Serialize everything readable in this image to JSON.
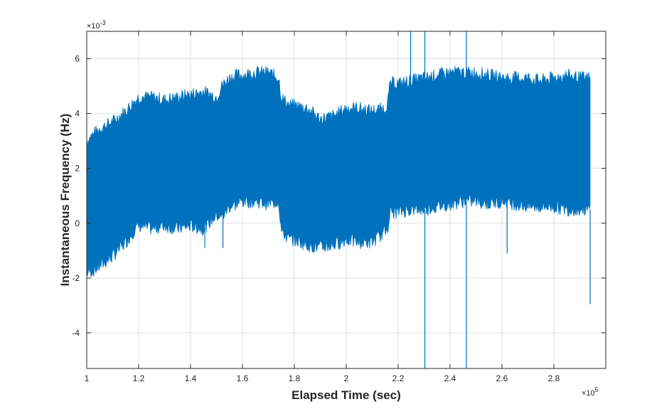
{
  "chart_data": {
    "type": "line",
    "xlabel": "Elapsed Time (sec)",
    "ylabel": "Instantaneous Frequency (Hz)",
    "x_multiplier": "×10",
    "x_multiplier_exp": "5",
    "y_multiplier": "×10",
    "y_multiplier_exp": "-3",
    "xlim": [
      1.0,
      3.0
    ],
    "ylim": [
      -5.3,
      7.0
    ],
    "x_ticks": [
      1,
      1.2,
      1.4,
      1.6,
      1.8,
      2,
      2.2,
      2.4,
      2.6,
      2.8
    ],
    "x_tick_labels": [
      "1",
      "1.2",
      "1.4",
      "1.6",
      "1.8",
      "2",
      "2.2",
      "2.4",
      "2.6",
      "2.8"
    ],
    "y_ticks": [
      -4,
      -2,
      0,
      2,
      4,
      6
    ],
    "y_tick_labels": [
      "-4",
      "-2",
      "0",
      "2",
      "4",
      "6"
    ],
    "grid": true,
    "series_color": "#0072BD",
    "series": [
      {
        "envelope_x": [
          1.0,
          1.03,
          1.06,
          1.1,
          1.15,
          1.18,
          1.2,
          1.25,
          1.3,
          1.35,
          1.4,
          1.45,
          1.5,
          1.52,
          1.55,
          1.58,
          1.6,
          1.65,
          1.7,
          1.74,
          1.75,
          1.78,
          1.8,
          1.85,
          1.9,
          1.95,
          2.0,
          2.05,
          2.1,
          2.15,
          2.16,
          2.17,
          2.2,
          2.25,
          2.3,
          2.35,
          2.4,
          2.45,
          2.5,
          2.55,
          2.6,
          2.65,
          2.7,
          2.75,
          2.8,
          2.85,
          2.9,
          2.94
        ],
        "envelope_upper": [
          3.0,
          3.3,
          3.5,
          3.7,
          4.1,
          4.4,
          4.6,
          4.6,
          4.5,
          4.6,
          4.7,
          4.8,
          4.6,
          5.0,
          5.3,
          5.4,
          5.4,
          5.5,
          5.5,
          5.3,
          4.6,
          4.3,
          4.3,
          4.2,
          3.8,
          3.9,
          4.2,
          4.2,
          4.1,
          4.2,
          4.4,
          5.1,
          5.1,
          5.2,
          5.3,
          5.4,
          5.5,
          5.5,
          5.5,
          5.4,
          5.3,
          5.3,
          5.3,
          5.2,
          5.3,
          5.4,
          5.3,
          5.3
        ],
        "envelope_lower": [
          -1.8,
          -1.7,
          -1.5,
          -1.2,
          -0.7,
          -0.3,
          -0.1,
          -0.2,
          -0.1,
          -0.2,
          -0.1,
          -0.2,
          0.3,
          0.2,
          0.6,
          0.7,
          0.8,
          0.8,
          0.7,
          0.8,
          -0.3,
          -0.6,
          -0.6,
          -0.8,
          -0.9,
          -0.8,
          -0.6,
          -0.7,
          -0.7,
          -0.3,
          -0.1,
          0.4,
          0.4,
          0.5,
          0.5,
          0.6,
          0.7,
          0.8,
          0.8,
          0.7,
          0.8,
          0.7,
          0.6,
          0.6,
          0.6,
          0.5,
          0.5,
          0.5
        ],
        "spikes": [
          {
            "x": 1.525,
            "y": -0.9
          },
          {
            "x": 1.455,
            "y": -0.9
          },
          {
            "x": 2.248,
            "y": 7.0
          },
          {
            "x": 2.303,
            "y": 7.0
          },
          {
            "x": 2.303,
            "y": -5.3
          },
          {
            "x": 2.463,
            "y": 7.0
          },
          {
            "x": 2.463,
            "y": -5.3
          },
          {
            "x": 2.62,
            "y": -1.1
          },
          {
            "x": 2.94,
            "y": -2.95
          }
        ]
      }
    ]
  }
}
